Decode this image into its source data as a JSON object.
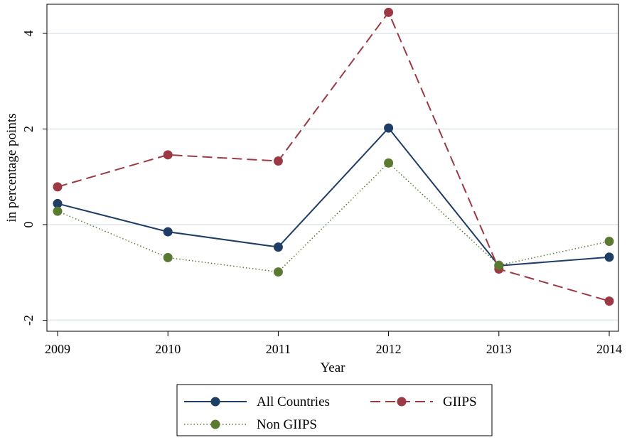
{
  "chart_data": {
    "type": "line",
    "xlabel": "Year",
    "ylabel": "in percentage points",
    "x": [
      2009,
      2010,
      2011,
      2012,
      2013,
      2014
    ],
    "x_tick_labels": [
      "2009",
      "2010",
      "2011",
      "2012",
      "2013",
      "2014"
    ],
    "y_ticks": [
      -2,
      0,
      2,
      4
    ],
    "y_tick_labels": [
      "-2",
      "0",
      "2",
      "4"
    ],
    "ylim": [
      -2.2,
      4.6
    ],
    "grid": true,
    "legend_position": "bottom",
    "series": [
      {
        "name": "All Countries",
        "values": [
          0.44,
          -0.15,
          -0.47,
          2.02,
          -0.86,
          -0.68
        ],
        "color": "#1f3e66",
        "line_style": "solid"
      },
      {
        "name": "GIIPS",
        "values": [
          0.79,
          1.46,
          1.33,
          4.44,
          -0.93,
          -1.6
        ],
        "color": "#9b3a44",
        "line_style": "dashed"
      },
      {
        "name": "Non GIIPS",
        "values": [
          0.28,
          -0.69,
          -0.99,
          1.29,
          -0.85,
          -0.35
        ],
        "color": "#5a7a32",
        "line_style": "dotted"
      }
    ]
  }
}
